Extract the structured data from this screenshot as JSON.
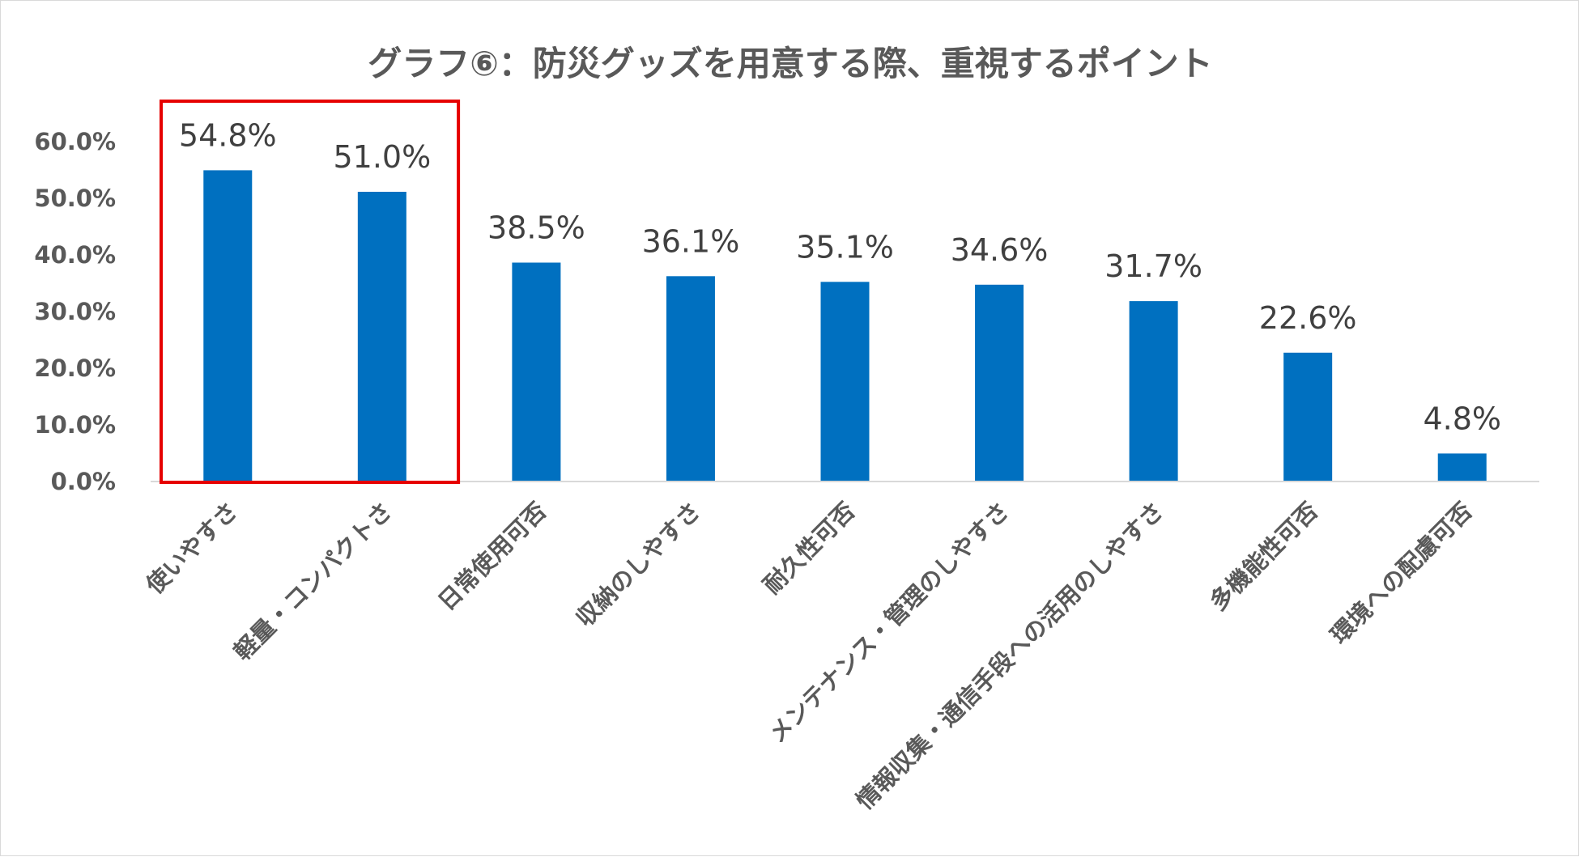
{
  "chart_data": {
    "type": "bar",
    "title": "グラフ⑥：防災グッズを用意する際、重視するポイント",
    "xlabel": "",
    "ylabel": "",
    "ylim": [
      0,
      60
    ],
    "yticks": [
      0,
      10,
      20,
      30,
      40,
      50,
      60
    ],
    "ytick_labels": [
      "0.0%",
      "10.0%",
      "20.0%",
      "30.0%",
      "40.0%",
      "50.0%",
      "60.0%"
    ],
    "grid": false,
    "legend": "none",
    "categories": [
      "使いやすさ",
      "軽量・コンパクトさ",
      "日常使用可否",
      "収納のしやすさ",
      "耐久性可否",
      "メンテナンス・管理のしやすさ",
      "情報収集・通信手段への活用のしやすさ",
      "多機能性可否",
      "環境への配慮可否"
    ],
    "values": [
      54.8,
      51.0,
      38.5,
      36.1,
      35.1,
      34.6,
      31.7,
      22.6,
      4.8
    ],
    "data_labels": [
      "54.8%",
      "51.0%",
      "38.5%",
      "36.1%",
      "35.1%",
      "34.6%",
      "31.7%",
      "22.6%",
      "4.8%"
    ],
    "highlight": {
      "categories": [
        "使いやすさ",
        "軽量・コンパクトさ"
      ],
      "style": "red-box"
    }
  },
  "colors": {
    "bar": "#0070c0",
    "highlight_box": "#e60000",
    "axis_line": "#d9d9d9",
    "text": "#595959",
    "data_label": "#404040",
    "frame": "#d9d9d9",
    "background": "#ffffff"
  }
}
